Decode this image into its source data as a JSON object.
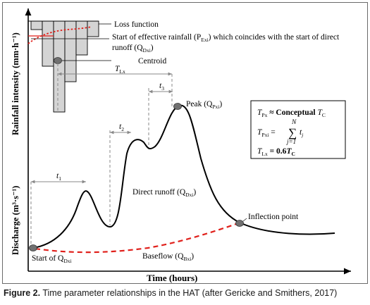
{
  "diagram": {
    "axes": {
      "y_upper_label": "Rainfall intensity (mm·h⁻¹)",
      "y_lower_label": "Discharge (m³·s⁻¹)",
      "x_label": "Time (hours)"
    },
    "hyetograph_labels": {
      "loss_function": "Loss function",
      "effective_rainfall_line1": "Start of effective rainfall (P",
      "effective_rainfall_sub1": "Exi",
      "effective_rainfall_line1_end": ") which coincides with the start of direct",
      "effective_rainfall_line2": "runoff (Q",
      "effective_rainfall_sub2": "Dxi",
      "effective_rainfall_line2_end": ")",
      "centroid": "Centroid"
    },
    "time_labels": {
      "tlx": "T",
      "tlx_sub": "Lx",
      "t1": "t",
      "t1_sub": "1",
      "t2": "t",
      "t2_sub": "2",
      "t3": "t",
      "t3_sub": "3"
    },
    "hydrograph_labels": {
      "peak": "Peak (Q",
      "peak_sub": "Pxi",
      "peak_end": ")",
      "direct_runoff": "Direct runoff (Q",
      "direct_runoff_sub": "Dxi",
      "direct_runoff_end": ")",
      "inflection_point": "Inflection point",
      "baseflow": "Baseflow (Q",
      "baseflow_sub": "Bxi",
      "baseflow_end": ")",
      "start_of": "Start of Q",
      "start_of_sub": "Dxi"
    },
    "equations": {
      "eq1_lhs": "T",
      "eq1_lhs_sub": "Px",
      "eq1_rel": " ≈ Conceptual ",
      "eq1_rhs": "T",
      "eq1_rhs_sub": "C",
      "eq2_lhs": "T",
      "eq2_lhs_sub": "Pxi",
      "eq2_eq": " = ",
      "eq2_sum_top": "N",
      "eq2_sum": "∑",
      "eq2_term": "t",
      "eq2_term_sub": "j",
      "eq2_sum_bottom": "j=1",
      "eq3_lhs": "T",
      "eq3_lhs_sub": "Lx",
      "eq3_rel": " = 0.6",
      "eq3_rhs": "T",
      "eq3_rhs_sub": "C"
    },
    "colors": {
      "bar_fill": "#d4d4d4",
      "loss_curve": "#e0201b",
      "baseflow_curve": "#e0201b",
      "marker_fill": "#707070"
    }
  },
  "caption": {
    "label": "Figure 2.",
    "text": " Time parameter relationships in the HAT (after Gericke and Smithers, 2017)"
  }
}
